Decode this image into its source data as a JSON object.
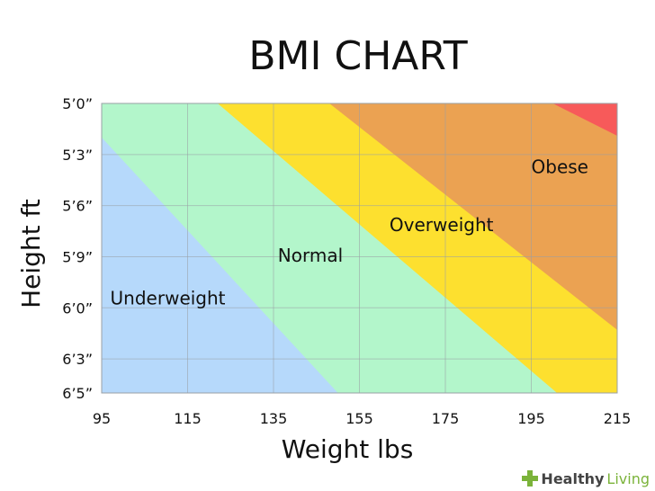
{
  "chart_data": {
    "type": "area",
    "title": "BMI CHART",
    "xlabel": "Weight lbs",
    "ylabel": "Height ft",
    "xlim": [
      95,
      215
    ],
    "x_ticks": [
      95,
      115,
      135,
      155,
      175,
      195,
      215
    ],
    "y_range_inches": [
      60,
      77
    ],
    "y_ticks": [
      {
        "label": "5’0”",
        "inches": 60
      },
      {
        "label": "5’3”",
        "inches": 63
      },
      {
        "label": "5’6”",
        "inches": 66
      },
      {
        "label": "5’9”",
        "inches": 69
      },
      {
        "label": "6’0”",
        "inches": 72
      },
      {
        "label": "6’3”",
        "inches": 75
      },
      {
        "label": "6’5”",
        "inches": 77
      }
    ],
    "grid": true,
    "regions": [
      {
        "name": "Underweight",
        "color": "#b6d9fb",
        "label_at": [
          97,
          71.8
        ]
      },
      {
        "name": "Normal",
        "color": "#b3f6cb",
        "label_at": [
          136,
          69.3
        ]
      },
      {
        "name": "Overweight",
        "color": "#fde02f",
        "label_at": [
          162,
          67.5
        ]
      },
      {
        "name": "Obese",
        "color": "#eba252",
        "label_at": [
          195,
          64.1
        ]
      },
      {
        "name": "",
        "color": "#f75a5a"
      }
    ],
    "boundaries": [
      {
        "between": [
          "Underweight",
          "Normal"
        ],
        "points": [
          [
            95,
            62.0
          ],
          [
            150,
            77.0
          ]
        ]
      },
      {
        "between": [
          "Normal",
          "Overweight"
        ],
        "points": [
          [
            122,
            60.0
          ],
          [
            201,
            77.0
          ]
        ]
      },
      {
        "between": [
          "Overweight",
          "Obese"
        ],
        "points": [
          [
            148,
            60.0
          ],
          [
            215,
            73.3
          ]
        ]
      },
      {
        "between": [
          "Obese",
          ""
        ],
        "points": [
          [
            200,
            60.0
          ],
          [
            215,
            61.9
          ]
        ]
      }
    ]
  },
  "watermark": {
    "brand_a": "Healthy",
    "brand_b": "Living"
  }
}
